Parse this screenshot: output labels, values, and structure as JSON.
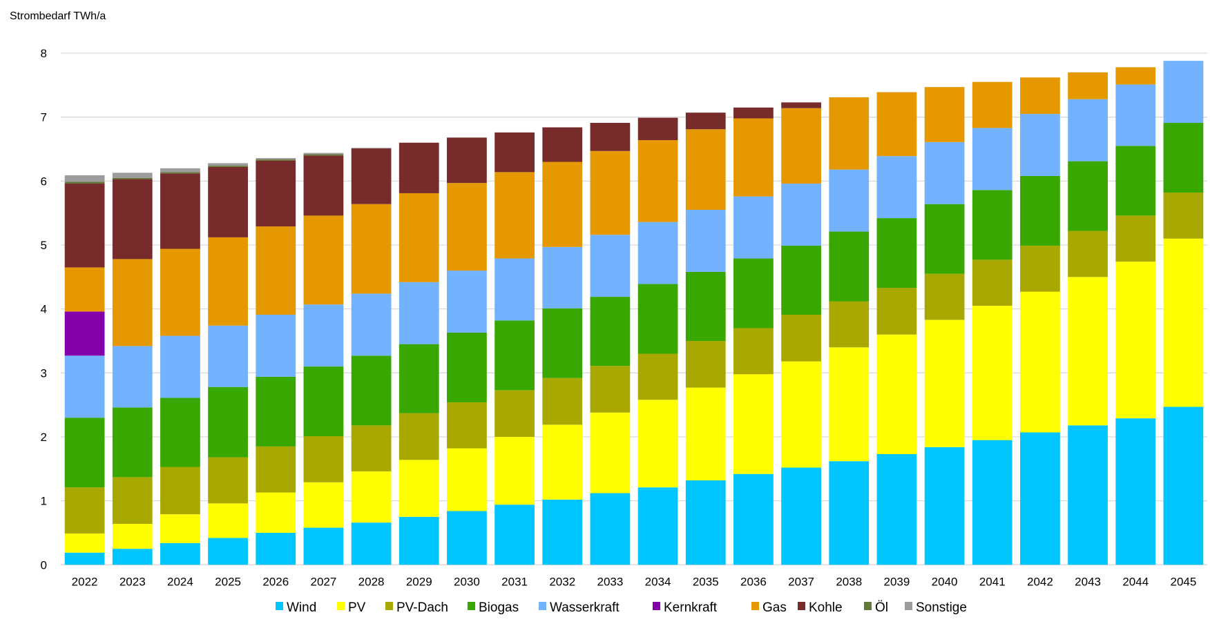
{
  "chart_data": {
    "type": "bar",
    "stacked": true,
    "title": "",
    "xlabel": "",
    "ylabel": "Strombedarf TWh/a",
    "ylim": [
      0,
      8
    ],
    "yticks": [
      0,
      1,
      2,
      3,
      4,
      5,
      6,
      7,
      8
    ],
    "grid": true,
    "legend_position": "bottom",
    "categories": [
      "2022",
      "2023",
      "2024",
      "2025",
      "2026",
      "2027",
      "2028",
      "2029",
      "2030",
      "2031",
      "2032",
      "2033",
      "2034",
      "2035",
      "2036",
      "2037",
      "2038",
      "2039",
      "2040",
      "2041",
      "2042",
      "2043",
      "2044",
      "2045"
    ],
    "series": [
      {
        "name": "Wind",
        "color": "#00c5ff",
        "values": [
          0.19,
          0.25,
          0.34,
          0.42,
          0.5,
          0.58,
          0.66,
          0.75,
          0.84,
          0.94,
          1.02,
          1.12,
          1.21,
          1.32,
          1.42,
          1.52,
          1.62,
          1.73,
          1.84,
          1.95,
          2.07,
          2.18,
          2.29,
          2.47
        ]
      },
      {
        "name": "PV",
        "color": "#ffff00",
        "values": [
          0.3,
          0.39,
          0.45,
          0.54,
          0.63,
          0.71,
          0.8,
          0.89,
          0.98,
          1.06,
          1.17,
          1.26,
          1.37,
          1.45,
          1.56,
          1.66,
          1.78,
          1.87,
          1.99,
          2.1,
          2.2,
          2.32,
          2.45,
          2.63
        ]
      },
      {
        "name": "PV-Dach",
        "color": "#a9a800",
        "values": [
          0.72,
          0.73,
          0.74,
          0.72,
          0.72,
          0.72,
          0.72,
          0.73,
          0.72,
          0.73,
          0.73,
          0.73,
          0.72,
          0.73,
          0.72,
          0.73,
          0.72,
          0.73,
          0.72,
          0.72,
          0.72,
          0.72,
          0.72,
          0.72
        ]
      },
      {
        "name": "Biogas",
        "color": "#38a800",
        "values": [
          1.09,
          1.09,
          1.08,
          1.1,
          1.09,
          1.09,
          1.09,
          1.08,
          1.09,
          1.09,
          1.09,
          1.08,
          1.09,
          1.08,
          1.09,
          1.08,
          1.09,
          1.09,
          1.09,
          1.09,
          1.09,
          1.09,
          1.09,
          1.09
        ]
      },
      {
        "name": "Wasserkraft",
        "color": "#73b2ff",
        "values": [
          0.97,
          0.96,
          0.97,
          0.96,
          0.97,
          0.97,
          0.97,
          0.97,
          0.97,
          0.97,
          0.96,
          0.97,
          0.97,
          0.97,
          0.97,
          0.97,
          0.97,
          0.97,
          0.97,
          0.97,
          0.97,
          0.97,
          0.96,
          0.97
        ]
      },
      {
        "name": "Kernkraft",
        "color": "#8400a8",
        "values": [
          0.69,
          0,
          0,
          0,
          0,
          0,
          0,
          0,
          0,
          0,
          0,
          0,
          0,
          0,
          0,
          0,
          0,
          0,
          0,
          0,
          0,
          0,
          0,
          0
        ]
      },
      {
        "name": "Gas",
        "color": "#e69800",
        "values": [
          0.69,
          1.36,
          1.36,
          1.38,
          1.38,
          1.39,
          1.4,
          1.39,
          1.37,
          1.35,
          1.33,
          1.31,
          1.28,
          1.26,
          1.22,
          1.18,
          1.13,
          1.0,
          0.86,
          0.72,
          0.57,
          0.42,
          0.27,
          0
        ]
      },
      {
        "name": "Kohle",
        "color": "#782b2b",
        "values": [
          1.31,
          1.25,
          1.18,
          1.1,
          1.03,
          0.94,
          0.87,
          0.79,
          0.71,
          0.62,
          0.54,
          0.44,
          0.35,
          0.26,
          0.17,
          0.09,
          0,
          0,
          0,
          0,
          0,
          0,
          0,
          0
        ]
      },
      {
        "name": "Öl",
        "color": "#637939",
        "values": [
          0.03,
          0.02,
          0.02,
          0.02,
          0.02,
          0.02,
          0,
          0,
          0,
          0,
          0,
          0,
          0,
          0,
          0,
          0,
          0,
          0,
          0,
          0,
          0,
          0,
          0,
          0
        ]
      },
      {
        "name": "Sonstige",
        "color": "#9c9c9c",
        "values": [
          0.1,
          0.08,
          0.06,
          0.04,
          0.02,
          0.02,
          0.01,
          0,
          0,
          0,
          0,
          0,
          0,
          0,
          0,
          0,
          0,
          0,
          0,
          0,
          0,
          0,
          0,
          0
        ]
      }
    ]
  }
}
